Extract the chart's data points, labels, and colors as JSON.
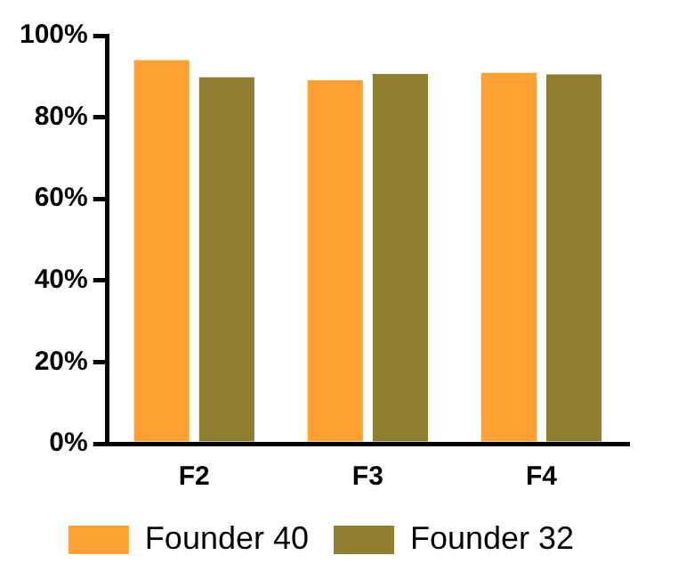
{
  "chart_data": {
    "type": "bar",
    "categories": [
      "F2",
      "F3",
      "F4"
    ],
    "series": [
      {
        "name": "Founder 40",
        "color": "#ffa033",
        "values": [
          94,
          89.1,
          90.9
        ]
      },
      {
        "name": "Founder 32",
        "color": "#917f30",
        "values": [
          89.8,
          90.6,
          90.5
        ]
      }
    ],
    "ylim": [
      0,
      100
    ],
    "yticks": [
      {
        "value": 0,
        "label": "0%"
      },
      {
        "value": 20,
        "label": "20%"
      },
      {
        "value": 40,
        "label": "40%"
      },
      {
        "value": 60,
        "label": "60%"
      },
      {
        "value": 80,
        "label": "80%"
      },
      {
        "value": 100,
        "label": "100%"
      }
    ],
    "grid": false,
    "legend": "bottom"
  }
}
